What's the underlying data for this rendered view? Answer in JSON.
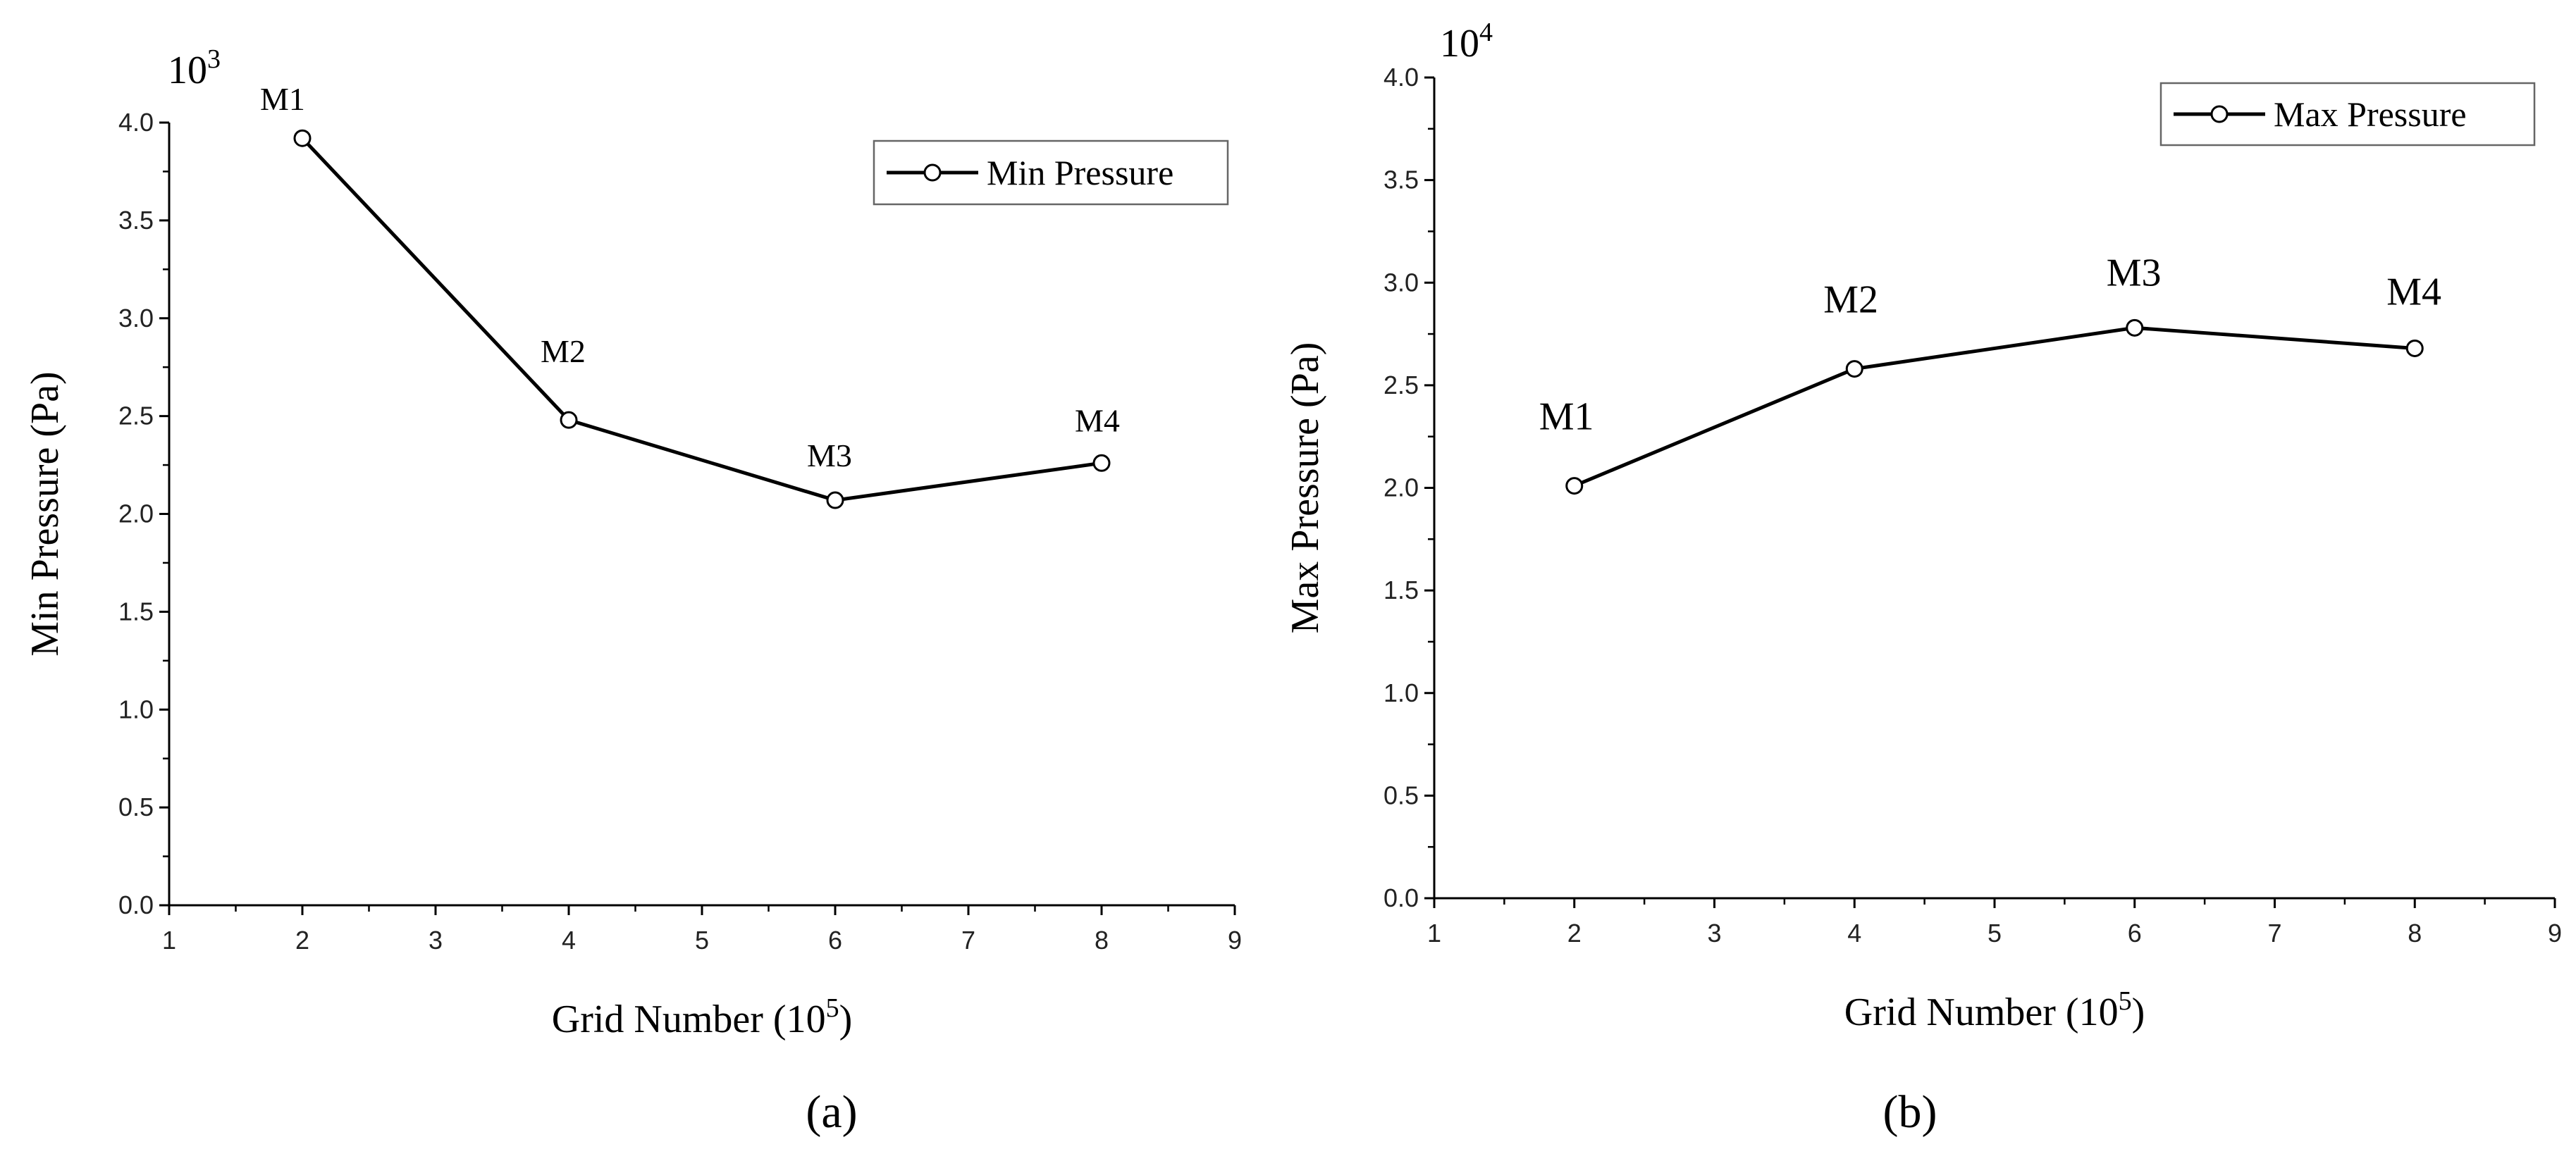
{
  "chart_data": [
    {
      "type": "line",
      "panel_label": "(a)",
      "multiplier": {
        "base": "10",
        "exp": "3"
      },
      "xlabel": {
        "text": "Grid Number (10",
        "sup": "5",
        "close": ")"
      },
      "ylabel": "Min Pressure (Pa)",
      "xlim": [
        1,
        9
      ],
      "ylim": [
        0.0,
        4.0
      ],
      "xticks": [
        "1",
        "2",
        "3",
        "4",
        "5",
        "6",
        "7",
        "8",
        "9"
      ],
      "yticks": [
        "0.0",
        "0.5",
        "1.0",
        "1.5",
        "2.0",
        "2.5",
        "3.0",
        "3.5",
        "4.0"
      ],
      "legend": {
        "label": "Min Pressure",
        "position": "top-right"
      },
      "series": [
        {
          "name": "Min Pressure",
          "x": [
            2,
            4,
            6,
            8
          ],
          "y": [
            3.92,
            2.48,
            2.07,
            2.26
          ],
          "labels": [
            "M1",
            "M2",
            "M3",
            "M4"
          ]
        }
      ]
    },
    {
      "type": "line",
      "panel_label": "(b)",
      "multiplier": {
        "base": "10",
        "exp": "4"
      },
      "xlabel": {
        "text": "Grid Number (10",
        "sup": "5",
        "close": ")"
      },
      "ylabel": "Max Pressure (Pa)",
      "xlim": [
        1,
        9
      ],
      "ylim": [
        0.0,
        4.0
      ],
      "xticks": [
        "1",
        "2",
        "3",
        "4",
        "5",
        "6",
        "7",
        "8",
        "9"
      ],
      "yticks": [
        "0.0",
        "0.5",
        "1.0",
        "1.5",
        "2.0",
        "2.5",
        "3.0",
        "3.5",
        "4.0"
      ],
      "legend": {
        "label": "Max Pressure",
        "position": "top-right"
      },
      "series": [
        {
          "name": "Max Pressure",
          "x": [
            2,
            4,
            6,
            8
          ],
          "y": [
            2.01,
            2.58,
            2.78,
            2.68
          ],
          "labels": [
            "M1",
            "M2",
            "M3",
            "M4"
          ]
        }
      ]
    }
  ]
}
